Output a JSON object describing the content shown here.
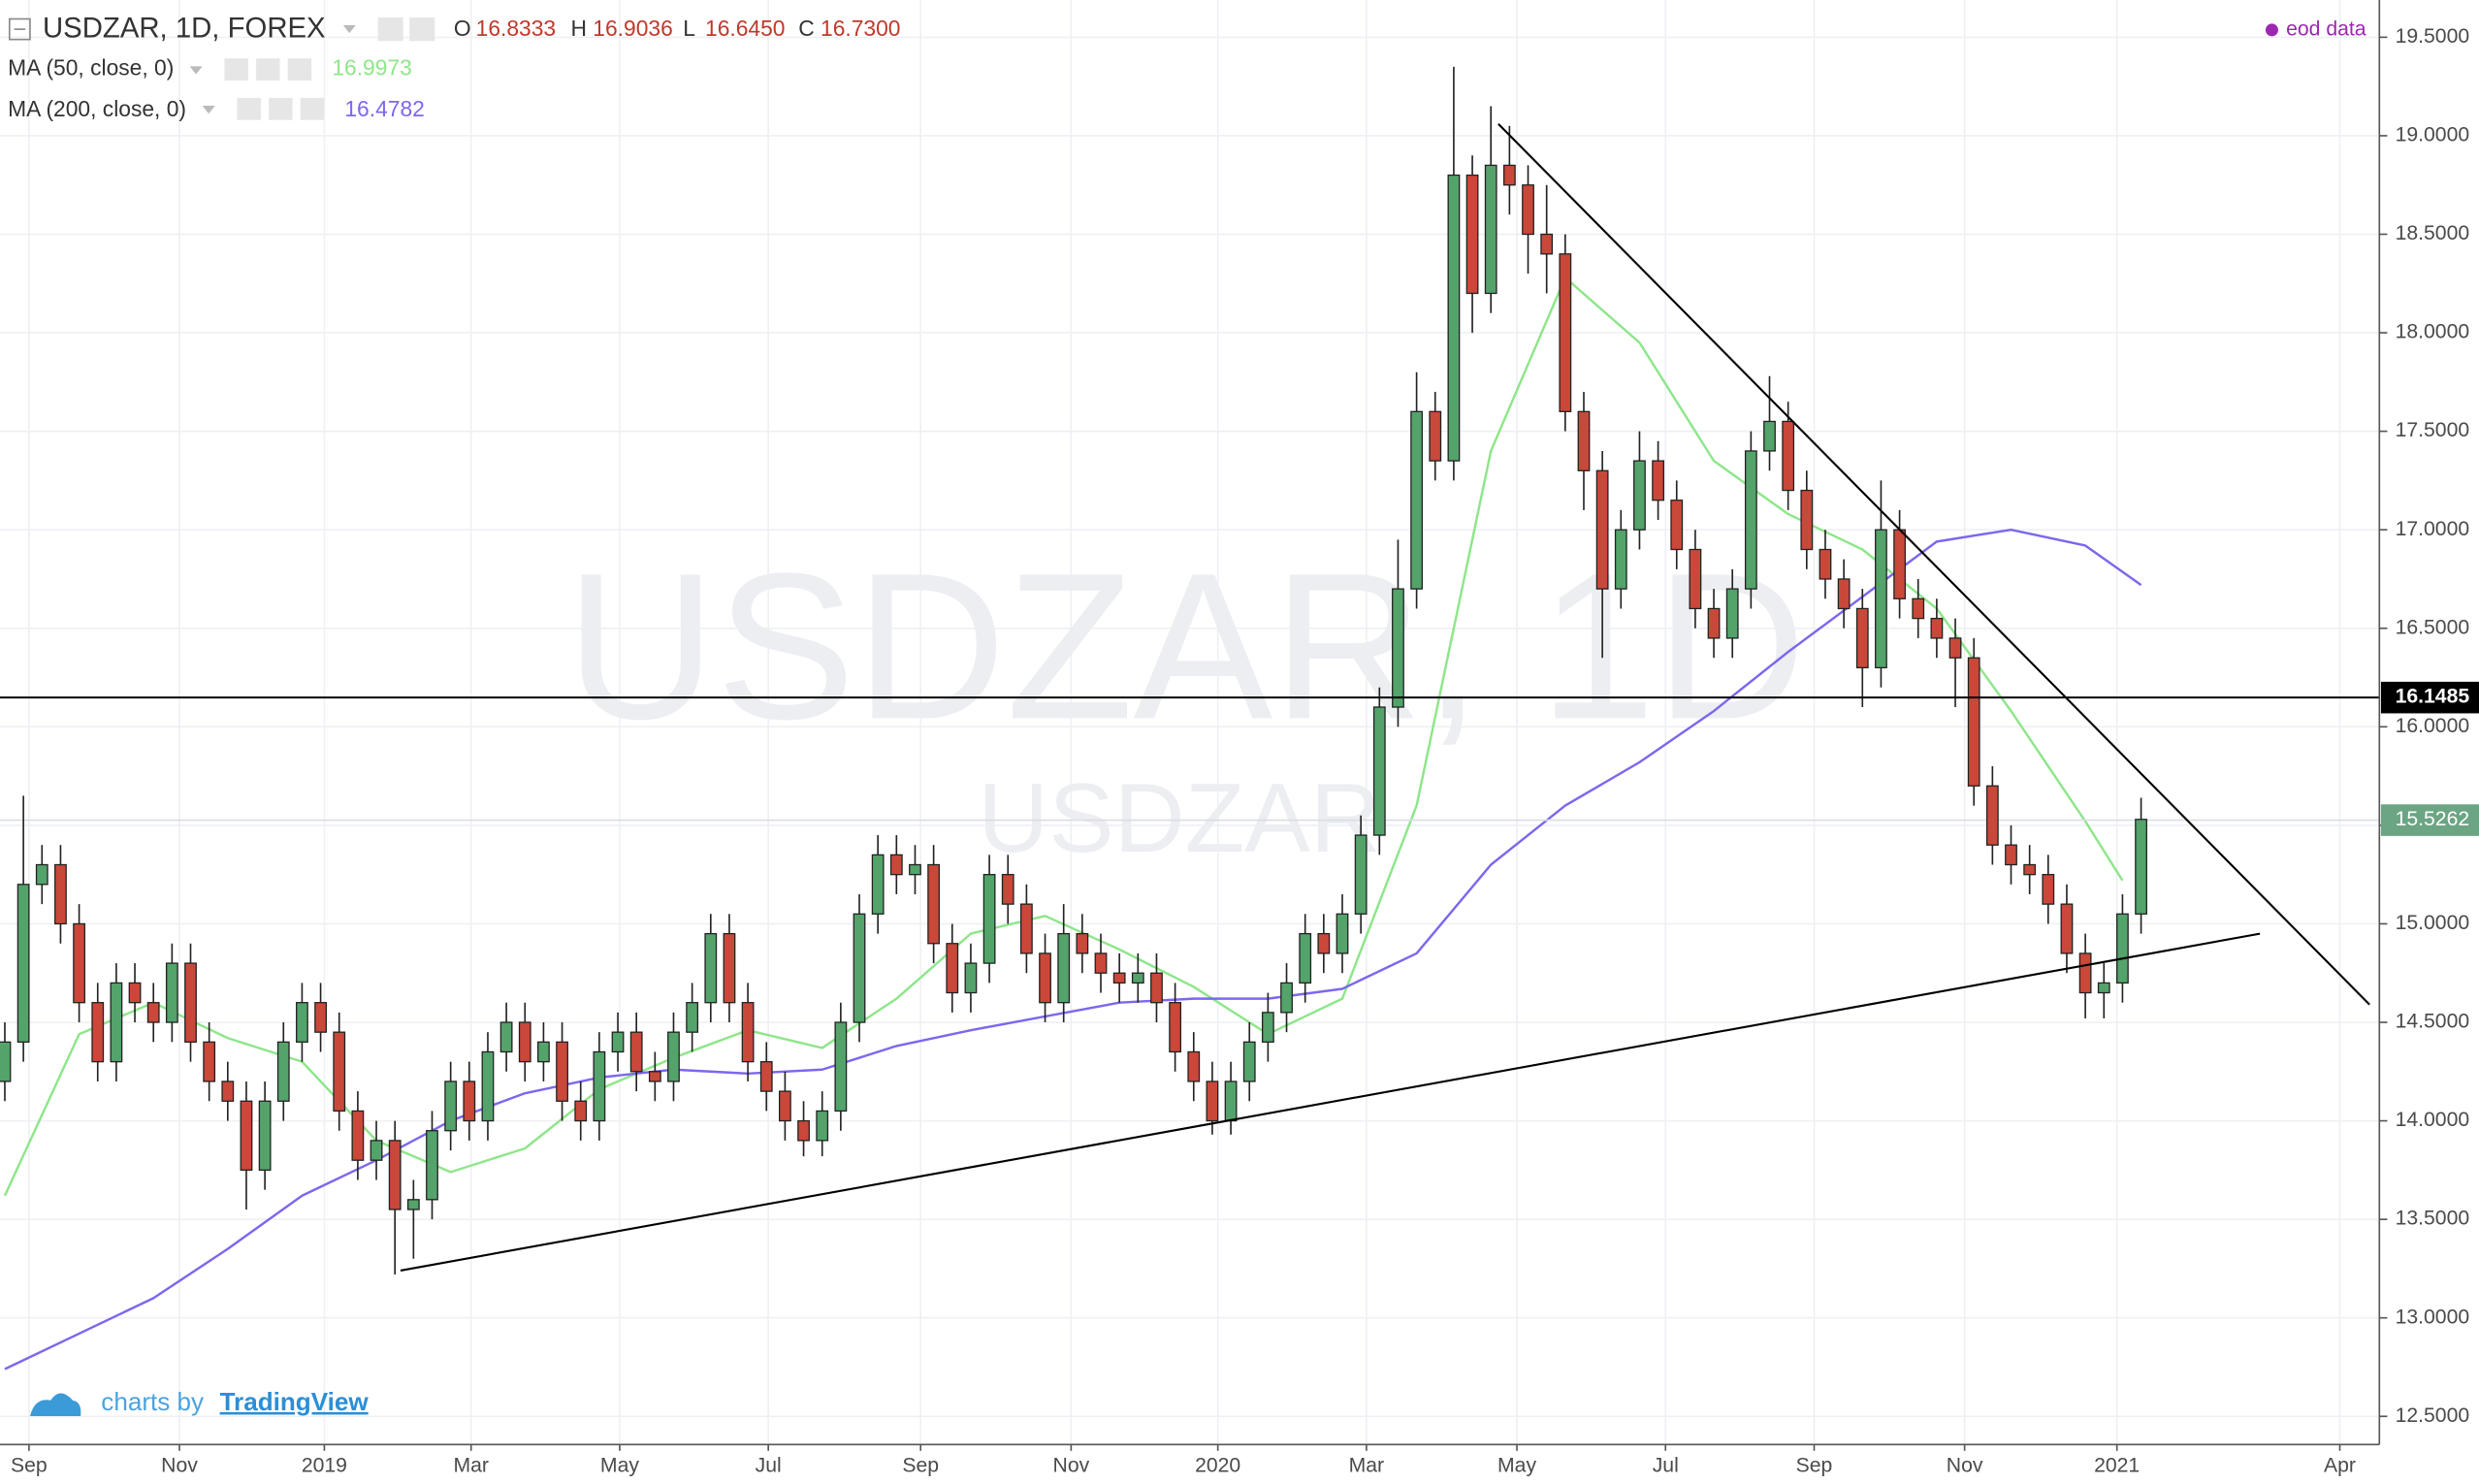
{
  "chart_data": {
    "type": "candlestick",
    "title": "USDZAR, 1D, FOREX",
    "ohlc": {
      "labels": [
        "O",
        "H",
        "L",
        "C"
      ],
      "values": [
        16.8333,
        16.9036,
        16.645,
        16.73
      ],
      "value_labels": [
        "16.8333",
        "16.9036",
        "16.6450",
        "16.7300"
      ],
      "color": "#c0392b"
    },
    "watermark": "USDZAR, 1D",
    "watermark_symbol": "USDZAR",
    "source": "eod data",
    "source_color": "#9c27b0",
    "branding": "charts by",
    "branding_link": "TradingView",
    "xlim": [
      -0.26,
      127.83
    ],
    "xticks": [
      {
        "value": 1.3,
        "label": "Sep"
      },
      {
        "value": 9.4,
        "label": "Nov"
      },
      {
        "value": 17.2,
        "label": "2019"
      },
      {
        "value": 25.1,
        "label": "Mar"
      },
      {
        "value": 33.1,
        "label": "May"
      },
      {
        "value": 41.1,
        "label": "Jul"
      },
      {
        "value": 49.3,
        "label": "Sep"
      },
      {
        "value": 57.4,
        "label": "Nov"
      },
      {
        "value": 65.3,
        "label": "2020"
      },
      {
        "value": 73.3,
        "label": "Mar"
      },
      {
        "value": 81.4,
        "label": "May"
      },
      {
        "value": 89.4,
        "label": "Jul"
      },
      {
        "value": 97.4,
        "label": "Sep"
      },
      {
        "value": 105.5,
        "label": "Nov"
      },
      {
        "value": 113.7,
        "label": "2021"
      },
      {
        "value": 125.7,
        "label": "Apr"
      }
    ],
    "ylim": [
      12.357,
      19.689
    ],
    "yticks": [
      {
        "value": 12.5,
        "label": "12.5000"
      },
      {
        "value": 13,
        "label": "13.0000"
      },
      {
        "value": 13.5,
        "label": "13.5000"
      },
      {
        "value": 14,
        "label": "14.0000"
      },
      {
        "value": 14.5,
        "label": "14.5000"
      },
      {
        "value": 15,
        "label": "15.0000"
      },
      {
        "value": 15.5,
        "label": "15.5000"
      },
      {
        "value": 16,
        "label": "16.0000"
      },
      {
        "value": 16.5,
        "label": "16.5000"
      },
      {
        "value": 17,
        "label": "17.0000"
      },
      {
        "value": 17.5,
        "label": "17.5000"
      },
      {
        "value": 18,
        "label": "18.0000"
      },
      {
        "value": 18.5,
        "label": "18.5000"
      },
      {
        "value": 19,
        "label": "19.0000"
      },
      {
        "value": 19.5,
        "label": "19.5000"
      }
    ],
    "grid": true,
    "candles": {
      "up_color": "#53a36b",
      "down_color": "#c9483a",
      "wick_color": "#222222",
      "open": [
        14.2,
        14.4,
        15.2,
        15.3,
        15.0,
        14.6,
        14.3,
        14.7,
        14.6,
        14.5,
        14.8,
        14.4,
        14.2,
        14.1,
        13.75,
        14.1,
        14.4,
        14.6,
        14.45,
        14.05,
        13.8,
        13.9,
        13.55,
        13.6,
        13.95,
        14.2,
        14.0,
        14.35,
        14.5,
        14.3,
        14.4,
        14.1,
        14.0,
        14.35,
        14.45,
        14.25,
        14.2,
        14.45,
        14.6,
        14.95,
        14.6,
        14.3,
        14.15,
        14.0,
        13.9,
        14.05,
        14.5,
        15.05,
        15.35,
        15.25,
        15.3,
        14.9,
        14.65,
        14.8,
        15.25,
        15.1,
        14.85,
        14.6,
        14.95,
        14.85,
        14.75,
        14.7,
        14.75,
        14.6,
        14.35,
        14.2,
        14.0,
        14.2,
        14.4,
        14.55,
        14.7,
        14.95,
        14.85,
        15.05,
        15.45,
        16.1,
        16.7,
        17.6,
        17.35,
        18.8,
        18.2,
        18.85,
        18.75,
        18.5,
        18.4,
        17.6,
        17.3,
        16.7,
        17.0,
        17.35,
        17.15,
        16.9,
        16.6,
        16.45,
        16.7,
        17.4,
        17.55,
        17.2,
        16.9,
        16.75,
        16.6,
        16.3,
        17.0,
        16.65,
        16.55,
        16.45,
        16.35,
        15.7,
        15.4,
        15.3,
        15.25,
        15.1,
        14.85,
        14.65,
        14.7,
        15.05
      ],
      "high": [
        14.5,
        15.65,
        15.4,
        15.4,
        15.1,
        14.7,
        14.8,
        14.8,
        14.7,
        14.9,
        14.9,
        14.5,
        14.3,
        14.2,
        14.2,
        14.5,
        14.7,
        14.7,
        14.55,
        14.15,
        14.0,
        14.0,
        13.7,
        14.05,
        14.3,
        14.3,
        14.45,
        14.6,
        14.6,
        14.5,
        14.5,
        14.2,
        14.45,
        14.55,
        14.55,
        14.35,
        14.55,
        14.7,
        15.05,
        15.05,
        14.7,
        14.4,
        14.25,
        14.1,
        14.15,
        14.6,
        15.15,
        15.45,
        15.45,
        15.4,
        15.4,
        15.0,
        14.9,
        15.35,
        15.35,
        15.2,
        14.95,
        15.1,
        15.05,
        14.95,
        14.85,
        14.85,
        14.85,
        14.7,
        14.45,
        14.3,
        14.3,
        14.5,
        14.65,
        14.8,
        15.05,
        15.05,
        15.15,
        15.55,
        16.2,
        16.95,
        17.8,
        17.7,
        19.35,
        18.9,
        19.15,
        19.05,
        18.85,
        18.75,
        18.5,
        17.7,
        17.4,
        17.1,
        17.5,
        17.45,
        17.25,
        17.0,
        16.7,
        16.8,
        17.5,
        17.78,
        17.65,
        17.3,
        17.0,
        16.85,
        16.7,
        17.25,
        17.1,
        16.75,
        16.65,
        16.55,
        16.45,
        15.8,
        15.5,
        15.4,
        15.35,
        15.2,
        14.95,
        14.8,
        15.15,
        15.64
      ],
      "low": [
        14.1,
        14.3,
        15.1,
        14.9,
        14.5,
        14.2,
        14.2,
        14.5,
        14.4,
        14.4,
        14.3,
        14.1,
        14.0,
        13.55,
        13.65,
        14.0,
        14.3,
        14.35,
        13.95,
        13.7,
        13.7,
        13.22,
        13.3,
        13.5,
        13.85,
        13.9,
        13.9,
        14.25,
        14.2,
        14.2,
        14.0,
        13.9,
        13.9,
        14.25,
        14.15,
        14.1,
        14.1,
        14.35,
        14.5,
        14.5,
        14.2,
        14.05,
        13.9,
        13.82,
        13.82,
        13.95,
        14.4,
        14.95,
        15.15,
        15.15,
        14.8,
        14.55,
        14.55,
        14.7,
        15.0,
        14.75,
        14.5,
        14.5,
        14.75,
        14.65,
        14.6,
        14.6,
        14.5,
        14.25,
        14.1,
        13.93,
        13.93,
        14.1,
        14.3,
        14.45,
        14.6,
        14.75,
        14.75,
        14.95,
        15.35,
        16.0,
        16.6,
        17.25,
        17.25,
        18.0,
        18.1,
        18.6,
        18.3,
        18.2,
        17.5,
        17.1,
        16.35,
        16.6,
        16.9,
        17.05,
        16.8,
        16.5,
        16.35,
        16.35,
        16.6,
        17.3,
        17.1,
        16.8,
        16.65,
        16.5,
        16.1,
        16.2,
        16.55,
        16.45,
        16.35,
        16.1,
        15.6,
        15.3,
        15.2,
        15.15,
        15.0,
        14.75,
        14.52,
        14.52,
        14.6,
        14.95
      ],
      "close": [
        14.4,
        15.2,
        15.3,
        15.0,
        14.6,
        14.3,
        14.7,
        14.6,
        14.5,
        14.8,
        14.4,
        14.2,
        14.1,
        13.75,
        14.1,
        14.4,
        14.6,
        14.45,
        14.05,
        13.8,
        13.9,
        13.55,
        13.6,
        13.95,
        14.2,
        14.0,
        14.35,
        14.5,
        14.3,
        14.4,
        14.1,
        14.0,
        14.35,
        14.45,
        14.25,
        14.2,
        14.45,
        14.6,
        14.95,
        14.6,
        14.3,
        14.15,
        14.0,
        13.9,
        14.05,
        14.5,
        15.05,
        15.35,
        15.25,
        15.3,
        14.9,
        14.65,
        14.8,
        15.25,
        15.1,
        14.85,
        14.6,
        14.95,
        14.85,
        14.75,
        14.7,
        14.75,
        14.6,
        14.35,
        14.2,
        14.0,
        14.2,
        14.4,
        14.55,
        14.7,
        14.95,
        14.85,
        15.05,
        15.45,
        16.1,
        16.7,
        17.6,
        17.35,
        18.8,
        18.2,
        18.85,
        18.75,
        18.5,
        18.4,
        17.6,
        17.3,
        16.7,
        17.0,
        17.35,
        17.15,
        16.9,
        16.6,
        16.45,
        16.7,
        17.4,
        17.55,
        17.2,
        16.9,
        16.75,
        16.6,
        16.3,
        17.0,
        16.65,
        16.55,
        16.45,
        16.35,
        15.7,
        15.4,
        15.3,
        15.25,
        15.1,
        14.85,
        14.65,
        14.7,
        15.05,
        15.53
      ]
    },
    "series": [
      {
        "name": "MA (50, close, 0)",
        "color": "#8ee68a",
        "last_value": 16.9973,
        "x": [
          0,
          4,
          8,
          12,
          16,
          20,
          24,
          28,
          32,
          36,
          40,
          44,
          48,
          52,
          56,
          60,
          64,
          68,
          72,
          76,
          80,
          84,
          88,
          92,
          96,
          100,
          104,
          108,
          112,
          114
        ],
        "values": [
          13.62,
          14.44,
          14.6,
          14.42,
          14.3,
          13.9,
          13.74,
          13.86,
          14.16,
          14.32,
          14.46,
          14.37,
          14.62,
          14.95,
          15.04,
          14.87,
          14.68,
          14.44,
          14.62,
          15.6,
          17.4,
          18.28,
          17.95,
          17.35,
          17.08,
          16.9,
          16.6,
          16.08,
          15.52,
          15.22
        ]
      },
      {
        "name": "MA (200, close, 0)",
        "color": "#7b68ee",
        "last_value": 16.4782,
        "x": [
          0,
          4,
          8,
          12,
          16,
          20,
          24,
          28,
          32,
          36,
          40,
          44,
          48,
          52,
          56,
          60,
          64,
          68,
          72,
          76,
          80,
          84,
          88,
          92,
          96,
          100,
          104,
          108,
          112,
          115
        ],
        "values": [
          12.74,
          12.92,
          13.1,
          13.35,
          13.62,
          13.8,
          14.0,
          14.14,
          14.22,
          14.26,
          14.24,
          14.26,
          14.38,
          14.46,
          14.53,
          14.6,
          14.62,
          14.62,
          14.67,
          14.85,
          15.3,
          15.6,
          15.82,
          16.08,
          16.38,
          16.66,
          16.94,
          17.0,
          16.92,
          16.72
        ]
      }
    ],
    "horizontal_line": 16.1485,
    "last_price": 15.5262,
    "last_price_color": "#6ba583",
    "trend_lines": [
      {
        "x": [
          21.3,
          121.4
        ],
        "y": [
          13.24,
          14.95
        ]
      },
      {
        "x": [
          80.4,
          127.3
        ],
        "y": [
          19.06,
          14.59
        ]
      }
    ]
  }
}
